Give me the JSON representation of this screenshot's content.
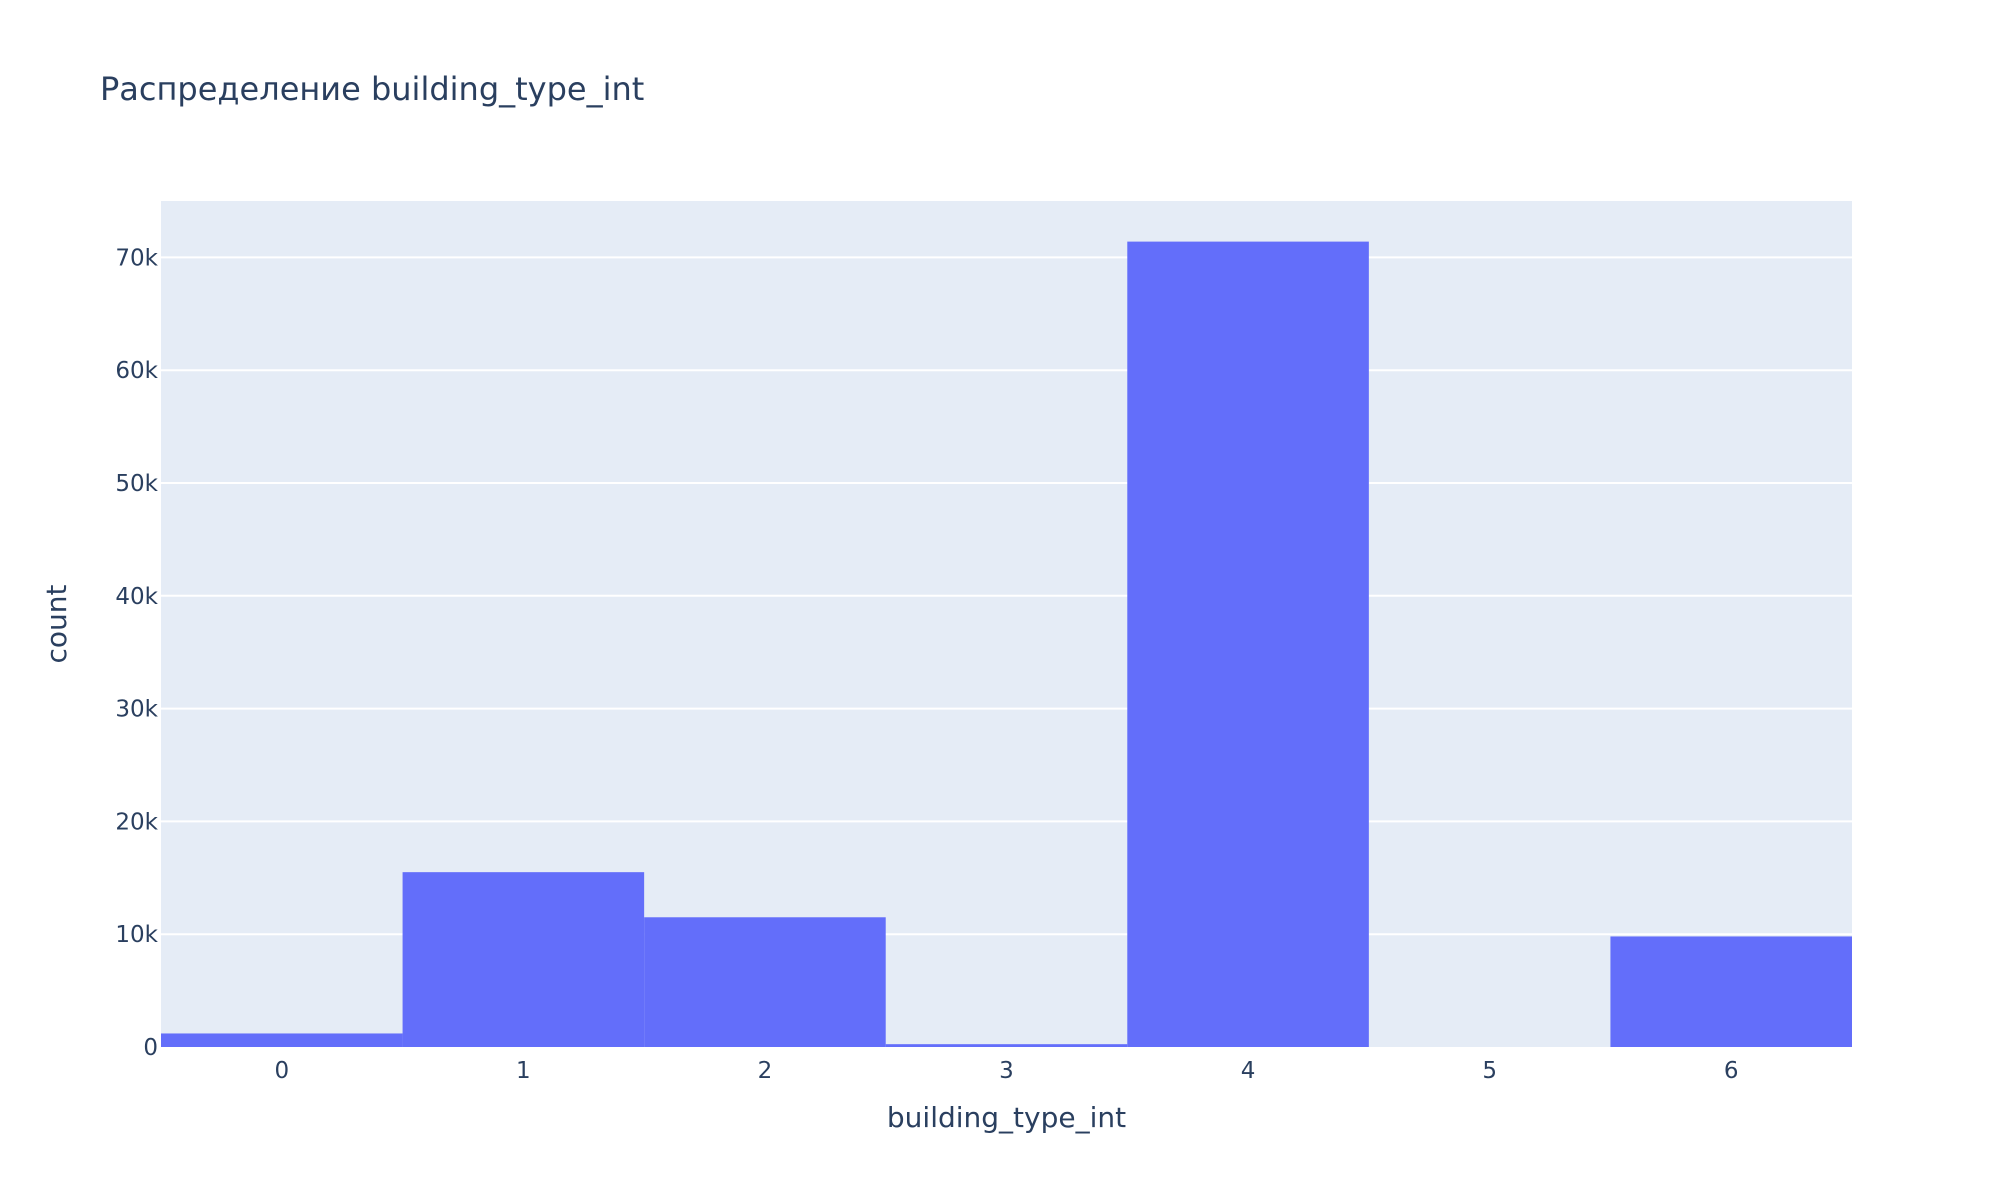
{
  "chart_data": {
    "type": "bar",
    "title": "Распределение building_type_int",
    "xlabel": "building_type_int",
    "ylabel": "count",
    "categories": [
      "0",
      "1",
      "2",
      "3",
      "4",
      "5",
      "6"
    ],
    "values": [
      1200,
      15500,
      11500,
      250,
      71400,
      0,
      9800
    ],
    "ylim": [
      0,
      75000
    ],
    "yticks": [
      0,
      10000,
      20000,
      30000,
      40000,
      50000,
      60000,
      70000
    ],
    "ytick_labels": [
      "0",
      "10k",
      "20k",
      "30k",
      "40k",
      "50k",
      "60k",
      "70k"
    ],
    "grid": true,
    "colors": {
      "bar": "#636efa",
      "plot_background": "#e5ecf6",
      "grid": "#ffffff",
      "text": "#2a3f5f"
    }
  }
}
